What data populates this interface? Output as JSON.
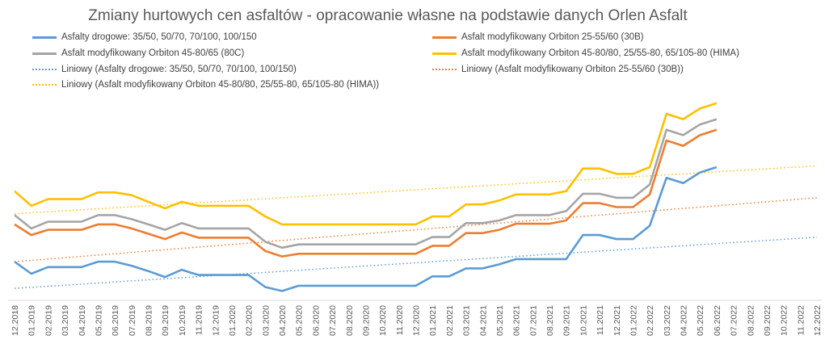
{
  "chart_data": {
    "type": "line",
    "title": "Zmiany hurtowych cen asfaltów - opracowanie własne na podstawie danych Orlen Asfalt",
    "xlabel": "",
    "ylabel": "",
    "y_axis_visible": false,
    "grid": false,
    "ylim": [
      1400,
      4600
    ],
    "legend_position": "top",
    "categories": [
      "12.2018",
      "01.2019",
      "02.2019",
      "03.2019",
      "04.2019",
      "05.2019",
      "06.2019",
      "07.2019",
      "08.2019",
      "09.2019",
      "10.2019",
      "11.2019",
      "12.2019",
      "01.2020",
      "02.2020",
      "03.2020",
      "04.2020",
      "05.2020",
      "06.2020",
      "07.2020",
      "08.2020",
      "09.2020",
      "10.2020",
      "11.2020",
      "12.2020",
      "01.2021",
      "02.2021",
      "03.2021",
      "04.2021",
      "05.2021",
      "06.2021",
      "07.2021",
      "08.2021",
      "09.2021",
      "10.2021",
      "11.2021",
      "12.2021",
      "01.2022",
      "02.2022",
      "03.2022",
      "04.2022",
      "05.2022",
      "06.2022",
      "07.2022",
      "08.2022",
      "09.2022",
      "10.2022",
      "11.2022",
      "12.2022"
    ],
    "series": [
      {
        "name": "Asfalty drogowe: 35/50, 50/70, 70/100, 100/150",
        "color": "#5B9BD5",
        "style": "solid",
        "values": [
          1980,
          1800,
          1900,
          1900,
          1900,
          1980,
          1980,
          1920,
          1840,
          1750,
          1860,
          1780,
          1780,
          1780,
          1780,
          1600,
          1540,
          1620,
          1620,
          1620,
          1620,
          1620,
          1620,
          1620,
          1620,
          1760,
          1760,
          1880,
          1880,
          1940,
          2020,
          2020,
          2020,
          2020,
          2380,
          2380,
          2320,
          2320,
          2520,
          3240,
          3160,
          3320,
          3400,
          null,
          null,
          null,
          null,
          null,
          null
        ]
      },
      {
        "name": "Asfalt modyfikowany Orbiton 25-55/60 (30B)",
        "color": "#ED7D31",
        "style": "solid",
        "values": [
          2540,
          2380,
          2460,
          2460,
          2460,
          2540,
          2540,
          2480,
          2400,
          2320,
          2420,
          2340,
          2340,
          2340,
          2340,
          2140,
          2060,
          2100,
          2100,
          2100,
          2100,
          2100,
          2100,
          2100,
          2100,
          2220,
          2220,
          2410,
          2410,
          2460,
          2550,
          2550,
          2550,
          2600,
          2860,
          2860,
          2800,
          2800,
          2990,
          3800,
          3720,
          3880,
          3960,
          null,
          null,
          null,
          null,
          null,
          null
        ]
      },
      {
        "name": "Asfalt modyfikowany Orbiton 45-80/65 (80C)",
        "color": "#A5A5A5",
        "style": "solid",
        "values": [
          2680,
          2480,
          2580,
          2580,
          2580,
          2680,
          2680,
          2620,
          2540,
          2460,
          2560,
          2480,
          2480,
          2480,
          2480,
          2280,
          2190,
          2240,
          2240,
          2240,
          2240,
          2240,
          2240,
          2240,
          2240,
          2350,
          2350,
          2560,
          2560,
          2600,
          2680,
          2680,
          2680,
          2740,
          3000,
          3000,
          2940,
          2940,
          3140,
          3960,
          3880,
          4040,
          4120,
          null,
          null,
          null,
          null,
          null,
          null
        ]
      },
      {
        "name": "Asfalt modyfikowany Orbiton 45-80/80, 25/55-80, 65/105-80 (HIMA)",
        "color": "#FFC000",
        "style": "solid",
        "values": [
          3040,
          2820,
          2920,
          2920,
          2920,
          3020,
          3020,
          2980,
          2880,
          2780,
          2880,
          2820,
          2820,
          2820,
          2820,
          2660,
          2540,
          2540,
          2540,
          2540,
          2540,
          2540,
          2540,
          2540,
          2540,
          2660,
          2660,
          2840,
          2840,
          2900,
          2990,
          2990,
          2990,
          3040,
          3380,
          3380,
          3300,
          3300,
          3400,
          4200,
          4120,
          4280,
          4360,
          null,
          null,
          null,
          null,
          null,
          null
        ]
      },
      {
        "name": "Liniowy (Asfalty drogowe: 35/50, 50/70, 70/100, 100/150)",
        "color": "#5B9BD5",
        "style": "dotted",
        "values": [
          1580,
          1596,
          1612,
          1628,
          1644,
          1660,
          1676,
          1692,
          1708,
          1724,
          1740,
          1756,
          1772,
          1788,
          1804,
          1820,
          1836,
          1852,
          1868,
          1884,
          1900,
          1916,
          1932,
          1948,
          1964,
          1980,
          1996,
          2012,
          2028,
          2044,
          2060,
          2076,
          2092,
          2108,
          2124,
          2140,
          2156,
          2172,
          2188,
          2204,
          2220,
          2236,
          2252,
          2268,
          2284,
          2300,
          2316,
          2332,
          2348
        ]
      },
      {
        "name": "Liniowy (Asfalt modyfikowany Orbiton 25-55/60 (30B))",
        "color": "#ED7D31",
        "style": "dotted",
        "values": [
          1980,
          2000,
          2020,
          2040,
          2060,
          2080,
          2100,
          2120,
          2140,
          2160,
          2180,
          2200,
          2220,
          2240,
          2260,
          2280,
          2300,
          2320,
          2340,
          2360,
          2380,
          2400,
          2420,
          2440,
          2460,
          2480,
          2500,
          2520,
          2540,
          2560,
          2580,
          2600,
          2620,
          2640,
          2660,
          2680,
          2700,
          2720,
          2740,
          2760,
          2780,
          2800,
          2820,
          2840,
          2860,
          2880,
          2900,
          2920,
          2940
        ]
      },
      {
        "name": "Liniowy (Asfalt modyfikowany Orbiton 45-80/80, 25/55-80, 65/105-80 (HIMA))",
        "color": "#FFC000",
        "style": "dotted",
        "values": [
          2700,
          2715,
          2730,
          2745,
          2760,
          2775,
          2790,
          2805,
          2820,
          2835,
          2850,
          2865,
          2880,
          2895,
          2910,
          2925,
          2940,
          2955,
          2970,
          2985,
          3000,
          3015,
          3030,
          3045,
          3060,
          3075,
          3090,
          3105,
          3120,
          3135,
          3150,
          3165,
          3180,
          3195,
          3210,
          3225,
          3240,
          3255,
          3270,
          3285,
          3300,
          3315,
          3330,
          3345,
          3360,
          3375,
          3390,
          3405,
          3420
        ]
      }
    ]
  }
}
